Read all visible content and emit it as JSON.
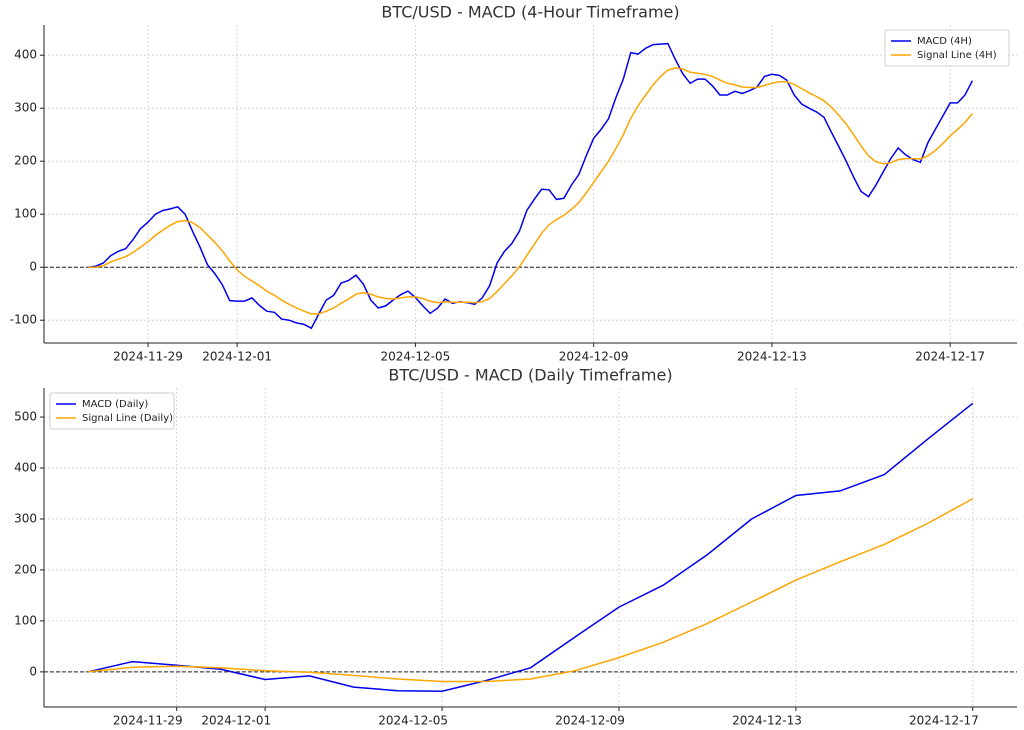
{
  "chart_data": [
    {
      "type": "line",
      "title": "BTC/USD - MACD (4-Hour Timeframe)",
      "x": [
        "2024-11-27 16:00",
        "2024-11-27 20:00",
        "2024-11-28 00:00",
        "2024-11-28 04:00",
        "2024-11-28 08:00",
        "2024-11-28 12:00",
        "2024-11-28 16:00",
        "2024-11-28 20:00",
        "2024-11-29 00:00",
        "2024-11-29 04:00",
        "2024-11-29 08:00",
        "2024-11-29 12:00",
        "2024-11-29 16:00",
        "2024-11-29 20:00",
        "2024-11-30 00:00",
        "2024-11-30 04:00",
        "2024-11-30 08:00",
        "2024-11-30 12:00",
        "2024-11-30 16:00",
        "2024-11-30 20:00",
        "2024-12-01 00:00",
        "2024-12-01 04:00",
        "2024-12-01 08:00",
        "2024-12-01 12:00",
        "2024-12-01 16:00",
        "2024-12-01 20:00",
        "2024-12-02 00:00",
        "2024-12-02 04:00",
        "2024-12-02 08:00",
        "2024-12-02 12:00",
        "2024-12-02 16:00",
        "2024-12-02 20:00",
        "2024-12-03 00:00",
        "2024-12-03 04:00",
        "2024-12-03 08:00",
        "2024-12-03 12:00",
        "2024-12-03 16:00",
        "2024-12-03 20:00",
        "2024-12-04 00:00",
        "2024-12-04 04:00",
        "2024-12-04 08:00",
        "2024-12-04 12:00",
        "2024-12-04 16:00",
        "2024-12-04 20:00",
        "2024-12-05 00:00",
        "2024-12-05 04:00",
        "2024-12-05 08:00",
        "2024-12-05 12:00",
        "2024-12-05 16:00",
        "2024-12-05 20:00",
        "2024-12-06 00:00",
        "2024-12-06 04:00",
        "2024-12-06 08:00",
        "2024-12-06 12:00",
        "2024-12-06 16:00",
        "2024-12-06 20:00",
        "2024-12-07 00:00",
        "2024-12-07 04:00",
        "2024-12-07 08:00",
        "2024-12-07 12:00",
        "2024-12-07 16:00",
        "2024-12-07 20:00",
        "2024-12-08 00:00",
        "2024-12-08 04:00",
        "2024-12-08 08:00",
        "2024-12-08 12:00",
        "2024-12-08 16:00",
        "2024-12-08 20:00",
        "2024-12-09 00:00",
        "2024-12-09 04:00",
        "2024-12-09 08:00",
        "2024-12-09 12:00",
        "2024-12-09 16:00",
        "2024-12-09 20:00",
        "2024-12-10 00:00",
        "2024-12-10 04:00",
        "2024-12-10 08:00",
        "2024-12-10 12:00",
        "2024-12-10 16:00",
        "2024-12-10 20:00",
        "2024-12-11 00:00",
        "2024-12-11 04:00",
        "2024-12-11 08:00",
        "2024-12-11 12:00",
        "2024-12-11 16:00",
        "2024-12-11 20:00",
        "2024-12-12 00:00",
        "2024-12-12 04:00",
        "2024-12-12 08:00",
        "2024-12-12 12:00",
        "2024-12-12 16:00",
        "2024-12-12 20:00",
        "2024-12-13 00:00",
        "2024-12-13 04:00",
        "2024-12-13 08:00",
        "2024-12-13 12:00",
        "2024-12-13 16:00",
        "2024-12-13 20:00",
        "2024-12-14 00:00",
        "2024-12-14 04:00",
        "2024-12-14 08:00",
        "2024-12-14 12:00",
        "2024-12-14 16:00",
        "2024-12-14 20:00",
        "2024-12-15 00:00",
        "2024-12-15 04:00",
        "2024-12-15 08:00",
        "2024-12-15 12:00",
        "2024-12-15 16:00",
        "2024-12-15 20:00",
        "2024-12-16 00:00",
        "2024-12-16 04:00",
        "2024-12-16 08:00",
        "2024-12-16 12:00",
        "2024-12-16 16:00",
        "2024-12-16 20:00",
        "2024-12-17 00:00",
        "2024-12-17 04:00",
        "2024-12-17 08:00",
        "2024-12-17 12:00"
      ],
      "series": [
        {
          "name": "MACD (4H)",
          "color": "#0000ee",
          "values": [
            0,
            2,
            8,
            22,
            30,
            35,
            52,
            73,
            85,
            100,
            107,
            110,
            114,
            100,
            68,
            38,
            5,
            -12,
            -33,
            -63,
            -64,
            -64,
            -58,
            -72,
            -83,
            -85,
            -98,
            -100,
            -105,
            -108,
            -115,
            -88,
            -62,
            -53,
            -30,
            -25,
            -15,
            -32,
            -62,
            -77,
            -73,
            -62,
            -52,
            -45,
            -57,
            -73,
            -87,
            -77,
            -60,
            -68,
            -65,
            -67,
            -70,
            -58,
            -35,
            8,
            30,
            45,
            68,
            107,
            128,
            147,
            146,
            128,
            130,
            155,
            175,
            210,
            243,
            260,
            280,
            320,
            355,
            405,
            402,
            413,
            420,
            421,
            422,
            392,
            365,
            347,
            355,
            355,
            342,
            325,
            325,
            332,
            328,
            333,
            340,
            360,
            364,
            362,
            353,
            325,
            308,
            300,
            293,
            283,
            255,
            228,
            200,
            170,
            143,
            133,
            155,
            180,
            205,
            225,
            212,
            203,
            198,
            235,
            260,
            285,
            310,
            310,
            325,
            352
          ]
        },
        {
          "name": "Signal Line (4H)",
          "color": "#ffa500",
          "values": [
            0,
            0,
            3,
            10,
            15,
            20,
            28,
            38,
            48,
            60,
            70,
            79,
            86,
            88,
            84,
            75,
            61,
            47,
            31,
            12,
            -5,
            -17,
            -26,
            -35,
            -45,
            -53,
            -62,
            -70,
            -77,
            -83,
            -88,
            -88,
            -83,
            -77,
            -68,
            -60,
            -51,
            -48,
            -51,
            -56,
            -59,
            -60,
            -58,
            -56,
            -56,
            -59,
            -64,
            -67,
            -65,
            -66,
            -66,
            -66,
            -67,
            -65,
            -59,
            -46,
            -31,
            -16,
            1,
            22,
            43,
            64,
            80,
            90,
            98,
            109,
            122,
            140,
            160,
            180,
            200,
            224,
            250,
            281,
            305,
            325,
            344,
            360,
            372,
            376,
            374,
            368,
            366,
            364,
            360,
            353,
            347,
            344,
            340,
            339,
            339,
            343,
            347,
            350,
            350,
            345,
            337,
            329,
            322,
            314,
            302,
            287,
            270,
            250,
            229,
            210,
            199,
            195,
            197,
            203,
            205,
            205,
            204,
            210,
            220,
            233,
            248,
            260,
            273,
            290
          ]
        }
      ],
      "xlim": [
        "2024-11-26 16:00",
        "2024-12-18 12:00"
      ],
      "xticks": [
        "2024-11-29",
        "2024-12-01",
        "2024-12-05",
        "2024-12-09",
        "2024-12-13",
        "2024-12-17"
      ],
      "ylim": [
        -143,
        457
      ],
      "yticks": [
        -100,
        0,
        100,
        200,
        300,
        400
      ],
      "reference_line": 0,
      "grid": true,
      "legend": "upper right"
    },
    {
      "type": "line",
      "title": "BTC/USD - MACD (Daily Timeframe)",
      "x": [
        "2024-11-27",
        "2024-11-28",
        "2024-11-29",
        "2024-11-30",
        "2024-12-01",
        "2024-12-02",
        "2024-12-03",
        "2024-12-04",
        "2024-12-05",
        "2024-12-06",
        "2024-12-07",
        "2024-12-08",
        "2024-12-09",
        "2024-12-10",
        "2024-12-11",
        "2024-12-12",
        "2024-12-13",
        "2024-12-14",
        "2024-12-15",
        "2024-12-16",
        "2024-12-17"
      ],
      "series": [
        {
          "name": "MACD (Daily)",
          "color": "#0000ee",
          "values": [
            0,
            20,
            13,
            5,
            -15,
            -8,
            -30,
            -37,
            -38,
            -17,
            8,
            68,
            127,
            170,
            230,
            300,
            346,
            355,
            387,
            458,
            527
          ]
        },
        {
          "name": "Signal Line (Daily)",
          "color": "#ffa500",
          "values": [
            0,
            9,
            11,
            8,
            2,
            -1,
            -7,
            -14,
            -19,
            -19,
            -14,
            2,
            28,
            58,
            95,
            137,
            180,
            216,
            250,
            292,
            340
          ]
        }
      ],
      "xlim": [
        "2024-11-26",
        "2024-12-18"
      ],
      "xticks": [
        "2024-11-29",
        "2024-12-01",
        "2024-12-05",
        "2024-12-09",
        "2024-12-13",
        "2024-12-17"
      ],
      "ylim": [
        -69,
        557
      ],
      "yticks": [
        0,
        100,
        200,
        300,
        400,
        500
      ],
      "reference_line": 0,
      "grid": true,
      "legend": "upper left"
    }
  ]
}
